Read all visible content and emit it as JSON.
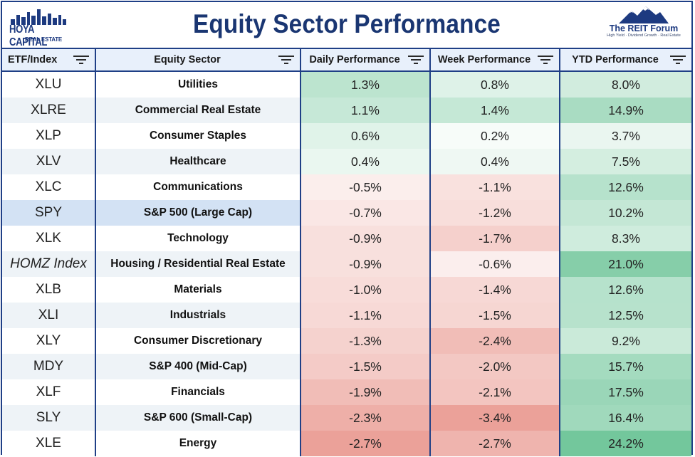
{
  "title": "Equity Sector Performance",
  "logo_left": {
    "line1": "HOYA CAPITAL",
    "line2": "REAL ESTATE"
  },
  "logo_right": {
    "name": "The REIT Forum",
    "tagline": "High Yield · Dividend Growth · Real Estate"
  },
  "headers": {
    "ticker": "ETF/Index",
    "sector": "Equity Sector",
    "daily": "Daily Performance",
    "week": "Week Performance",
    "ytd": "YTD Performance"
  },
  "colors": {
    "border": "#1f3f86",
    "title": "#1a3672",
    "positive_green": "#6cc497",
    "negative_red": "#ea9c94",
    "spy_highlight": "#d3e2f4"
  },
  "rows": [
    {
      "ticker": "XLU",
      "sector": "Utilities",
      "daily": "1.3%",
      "week": "0.8%",
      "ytd": "8.0%"
    },
    {
      "ticker": "XLRE",
      "sector": "Commercial Real Estate",
      "daily": "1.1%",
      "week": "1.4%",
      "ytd": "14.9%"
    },
    {
      "ticker": "XLP",
      "sector": "Consumer Staples",
      "daily": "0.6%",
      "week": "0.2%",
      "ytd": "3.7%"
    },
    {
      "ticker": "XLV",
      "sector": "Healthcare",
      "daily": "0.4%",
      "week": "0.4%",
      "ytd": "7.5%"
    },
    {
      "ticker": "XLC",
      "sector": "Communications",
      "daily": "-0.5%",
      "week": "-1.1%",
      "ytd": "12.6%"
    },
    {
      "ticker": "SPY",
      "sector": "S&P 500 (Large Cap)",
      "daily": "-0.7%",
      "week": "-1.2%",
      "ytd": "10.2%"
    },
    {
      "ticker": "XLK",
      "sector": "Technology",
      "daily": "-0.9%",
      "week": "-1.7%",
      "ytd": "8.3%"
    },
    {
      "ticker": "HOMZ Index",
      "sector": "Housing / Residential Real Estate",
      "daily": "-0.9%",
      "week": "-0.6%",
      "ytd": "21.0%"
    },
    {
      "ticker": "XLB",
      "sector": "Materials",
      "daily": "-1.0%",
      "week": "-1.4%",
      "ytd": "12.6%"
    },
    {
      "ticker": "XLI",
      "sector": "Industrials",
      "daily": "-1.1%",
      "week": "-1.5%",
      "ytd": "12.5%"
    },
    {
      "ticker": "XLY",
      "sector": "Consumer Discretionary",
      "daily": "-1.3%",
      "week": "-2.4%",
      "ytd": "9.2%"
    },
    {
      "ticker": "MDY",
      "sector": "S&P 400 (Mid-Cap)",
      "daily": "-1.5%",
      "week": "-2.0%",
      "ytd": "15.7%"
    },
    {
      "ticker": "XLF",
      "sector": "Financials",
      "daily": "-1.9%",
      "week": "-2.1%",
      "ytd": "17.5%"
    },
    {
      "ticker": "SLY",
      "sector": "S&P 600 (Small-Cap)",
      "daily": "-2.3%",
      "week": "-3.4%",
      "ytd": "16.4%"
    },
    {
      "ticker": "XLE",
      "sector": "Energy",
      "daily": "-2.7%",
      "week": "-2.7%",
      "ytd": "24.2%"
    }
  ]
}
